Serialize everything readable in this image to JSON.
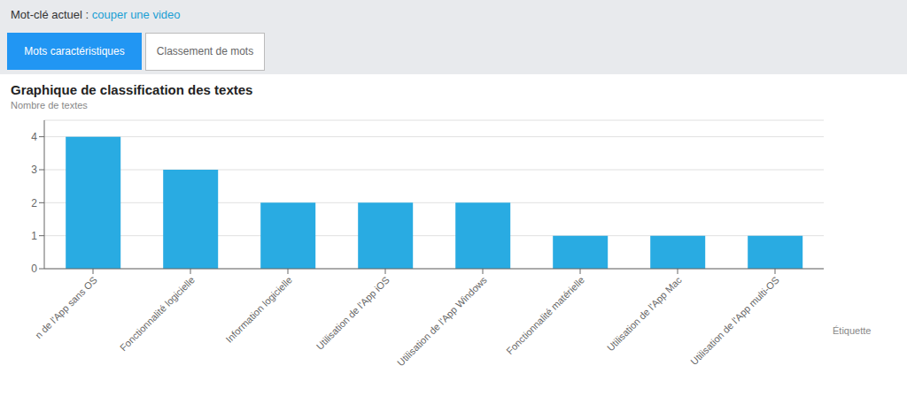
{
  "chart_data": {
    "type": "bar",
    "title": "Graphique de classification des textes",
    "ylabel": "Nombre de textes",
    "xlabel": "Étiquette",
    "categories": [
      "n de l'App sans OS",
      "Fonctionnalité logicielle",
      "Information logicielle",
      "Utilisation de l'App iOS",
      "Utilisation de l'App Windows",
      "Fonctionnalité matérielle",
      "Utilisation de l'App Mac",
      "Utilisation de l'App multi-OS"
    ],
    "values": [
      4,
      3,
      2,
      2,
      2,
      1,
      1,
      1
    ],
    "color": "#29ABE2",
    "ylim": [
      0,
      4.5
    ],
    "yticks": [
      0,
      1,
      2,
      3,
      4
    ],
    "grid": true,
    "annotations": [
      "Mot-clé actuel :",
      "couper une video",
      "Mots caractéristiques",
      "Classement de mots"
    ]
  }
}
